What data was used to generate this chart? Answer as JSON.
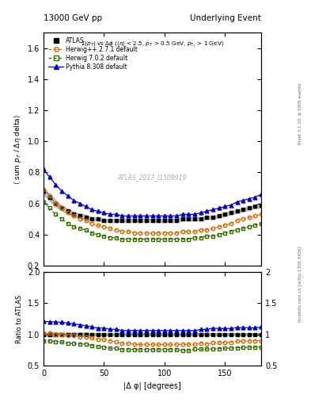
{
  "title_left": "13000 GeV pp",
  "title_right": "Underlying Event",
  "annotation": "ATLAS_2017_I1509919",
  "ylabel_main": "⟨ sum p$_T$ / Δη delta⟩",
  "ylabel_ratio": "Ratio to ATLAS",
  "xlabel": "|Δ φ| [degrees]",
  "right_label_top": "Rivet 3.1.10, ≥ 500k events",
  "right_label_bottom": "mcplots.cern.ch [arXiv:1306.3436]",
  "ylim_main": [
    0.2,
    1.7
  ],
  "ylim_ratio": [
    0.5,
    2.0
  ],
  "yticks_main": [
    0.2,
    0.4,
    0.6,
    0.8,
    1.0,
    1.2,
    1.4,
    1.6
  ],
  "yticks_ratio": [
    0.5,
    1.0,
    1.5,
    2.0
  ],
  "xlim": [
    0,
    180
  ],
  "xticks": [
    0,
    50,
    100,
    150
  ],
  "dphi": [
    0,
    5,
    10,
    15,
    20,
    25,
    30,
    35,
    40,
    45,
    50,
    55,
    60,
    65,
    70,
    75,
    80,
    85,
    90,
    95,
    100,
    105,
    110,
    115,
    120,
    125,
    130,
    135,
    140,
    145,
    150,
    155,
    160,
    165,
    170,
    175,
    180
  ],
  "atlas_y": [
    0.68,
    0.64,
    0.6,
    0.57,
    0.55,
    0.53,
    0.52,
    0.51,
    0.5,
    0.5,
    0.49,
    0.49,
    0.49,
    0.49,
    0.49,
    0.49,
    0.49,
    0.49,
    0.49,
    0.49,
    0.49,
    0.49,
    0.49,
    0.5,
    0.5,
    0.5,
    0.5,
    0.51,
    0.51,
    0.52,
    0.53,
    0.54,
    0.55,
    0.56,
    0.57,
    0.58,
    0.59
  ],
  "atlas_yerr": [
    0.02,
    0.02,
    0.02,
    0.015,
    0.015,
    0.015,
    0.015,
    0.015,
    0.01,
    0.01,
    0.01,
    0.01,
    0.01,
    0.01,
    0.01,
    0.01,
    0.01,
    0.01,
    0.01,
    0.01,
    0.01,
    0.01,
    0.01,
    0.01,
    0.01,
    0.01,
    0.01,
    0.01,
    0.01,
    0.01,
    0.01,
    0.01,
    0.01,
    0.01,
    0.01,
    0.01,
    0.015
  ],
  "herwig271_y": [
    0.69,
    0.65,
    0.6,
    0.57,
    0.54,
    0.52,
    0.5,
    0.49,
    0.47,
    0.46,
    0.45,
    0.44,
    0.43,
    0.42,
    0.42,
    0.41,
    0.41,
    0.41,
    0.41,
    0.41,
    0.41,
    0.41,
    0.41,
    0.42,
    0.42,
    0.42,
    0.43,
    0.43,
    0.44,
    0.45,
    0.46,
    0.47,
    0.49,
    0.5,
    0.51,
    0.52,
    0.53
  ],
  "herwig702_y": [
    0.61,
    0.57,
    0.53,
    0.5,
    0.47,
    0.45,
    0.44,
    0.43,
    0.41,
    0.4,
    0.39,
    0.38,
    0.38,
    0.37,
    0.37,
    0.37,
    0.37,
    0.37,
    0.37,
    0.37,
    0.37,
    0.37,
    0.37,
    0.37,
    0.37,
    0.38,
    0.38,
    0.39,
    0.39,
    0.4,
    0.41,
    0.42,
    0.43,
    0.44,
    0.45,
    0.46,
    0.47
  ],
  "pythia_y": [
    0.82,
    0.77,
    0.72,
    0.68,
    0.65,
    0.62,
    0.6,
    0.58,
    0.56,
    0.55,
    0.54,
    0.53,
    0.53,
    0.52,
    0.52,
    0.52,
    0.52,
    0.52,
    0.52,
    0.52,
    0.52,
    0.52,
    0.52,
    0.53,
    0.53,
    0.53,
    0.54,
    0.55,
    0.56,
    0.57,
    0.58,
    0.59,
    0.61,
    0.62,
    0.63,
    0.64,
    0.66
  ],
  "atlas_color": "#000000",
  "herwig271_color": "#cc6600",
  "herwig702_color": "#336600",
  "pythia_color": "#0000cc",
  "band_color": "#888888",
  "ref_line_color": "#99cc00",
  "background_color": "#ffffff",
  "legend_labels": [
    "ATLAS",
    "Herwig++ 2.7.1 default",
    "Herwig 7.0.2 default",
    "Pythia 8.308 default"
  ]
}
